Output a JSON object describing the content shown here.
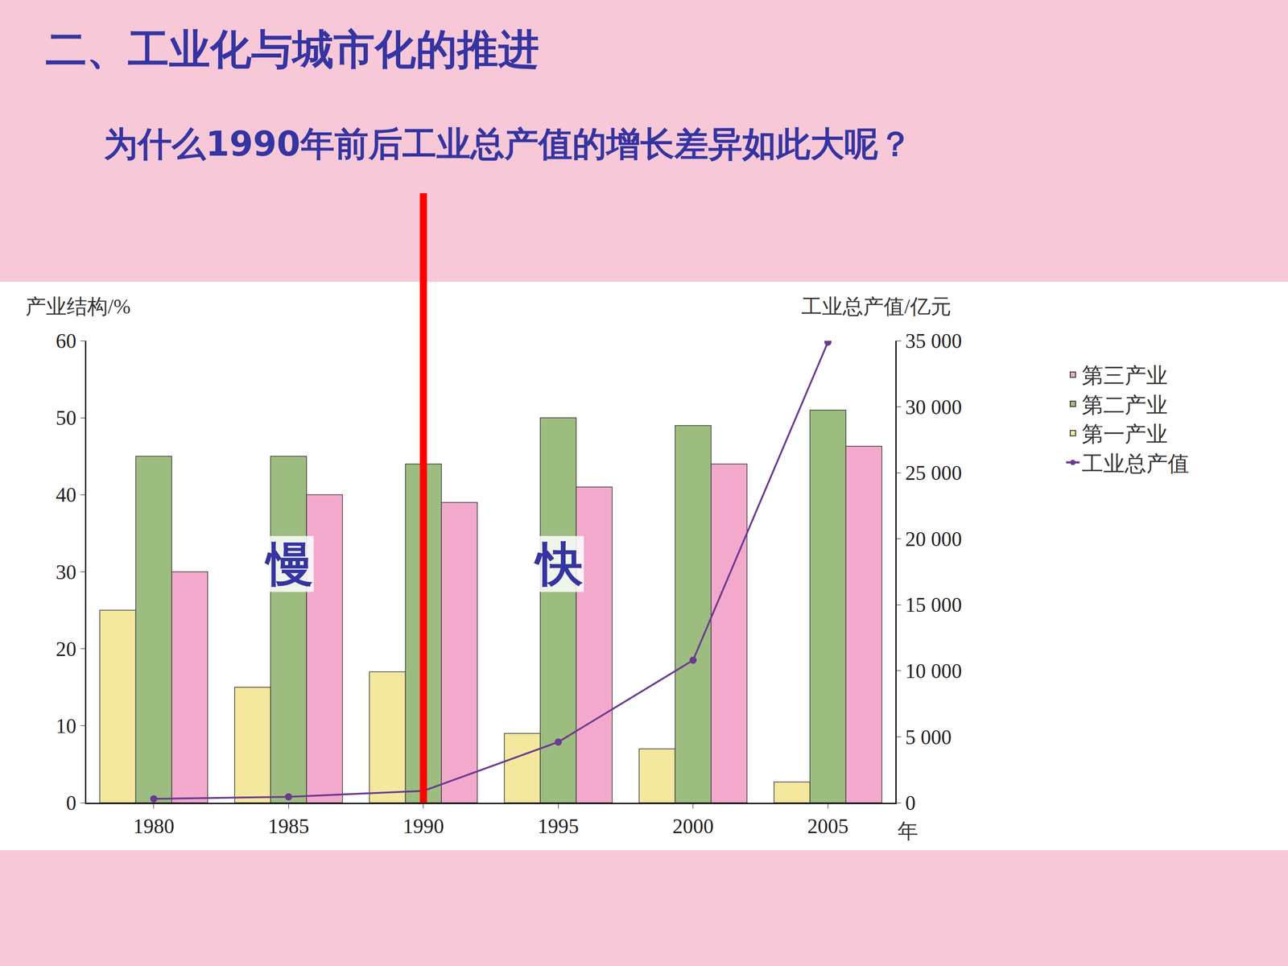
{
  "chart_data": {
    "type": "bar",
    "title": "二、工业化与城市化的推进",
    "subtitle": "为什么1990年前后工业总产值的增长差异如此大呢？",
    "categories": [
      "1980",
      "1985",
      "1990",
      "1995",
      "2000",
      "2005"
    ],
    "x_label": "年",
    "y_label": "产业结构/%",
    "y2_label": "工业总产值/亿元",
    "ylim": [
      0,
      60
    ],
    "yticks": [
      0,
      10,
      20,
      30,
      40,
      50,
      60
    ],
    "y2lim": [
      0,
      35000
    ],
    "y2ticks": [
      0,
      {
        "value": 5000,
        "label": "5 000"
      },
      {
        "value": 10000,
        "label": "10 000"
      },
      {
        "value": 15000,
        "label": "15 000"
      },
      {
        "value": 20000,
        "label": "20 000"
      },
      {
        "value": 25000,
        "label": "25 000"
      },
      {
        "value": 30000,
        "label": "30 000"
      },
      {
        "value": 35000,
        "label": "35 000"
      }
    ],
    "grid": false,
    "legend": "right",
    "series": [
      {
        "name": "第一产业",
        "type": "bar",
        "color": "#f3e89e",
        "values": [
          25,
          15,
          17,
          9,
          7,
          2.7
        ]
      },
      {
        "name": "第二产业",
        "type": "bar",
        "color": "#9dbd80",
        "values": [
          45,
          45,
          44,
          50,
          49,
          51
        ]
      },
      {
        "name": "第三产业",
        "type": "bar",
        "color": "#f2a9cc",
        "values": [
          30,
          40,
          39,
          41,
          44,
          46.3
        ]
      },
      {
        "name": "工业总产值",
        "type": "line",
        "axis": "y2",
        "color": "#6b3a8e",
        "marker": "circle",
        "values": [
          300,
          450,
          900,
          4600,
          10800,
          34900
        ]
      }
    ],
    "annotations": [
      {
        "text": "慢",
        "x": "1985",
        "y": 31
      },
      {
        "text": "快",
        "x": "1995",
        "y": 31
      }
    ],
    "reference_line": {
      "x": "1990",
      "color": "#ff0000"
    }
  }
}
